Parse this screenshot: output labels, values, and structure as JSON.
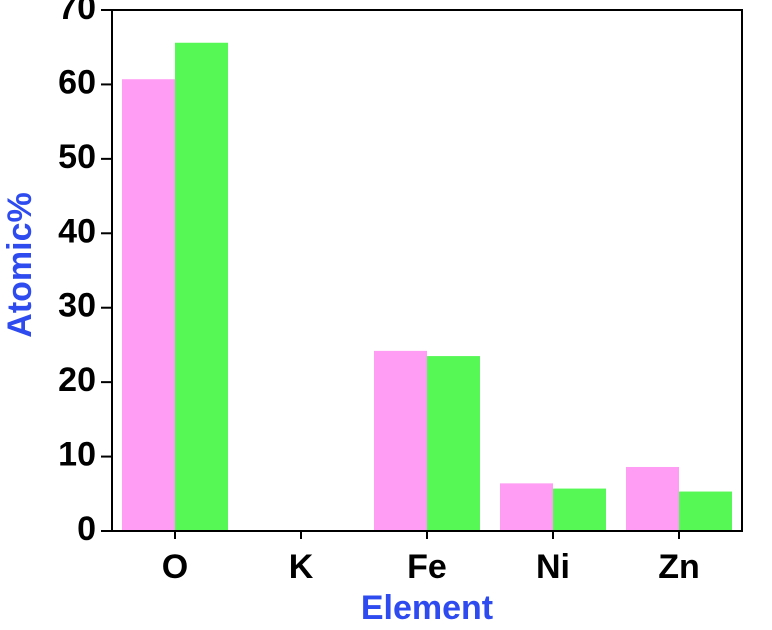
{
  "chart_data": {
    "type": "bar",
    "x_label": "Element",
    "y_label": "Atomic%",
    "categories": [
      "O",
      "K",
      "Fe",
      "Ni",
      "Zn"
    ],
    "series": [
      {
        "color": "#ff9cf4",
        "values": [
          60.7,
          0.1,
          24.2,
          6.4,
          8.6
        ]
      },
      {
        "color": "#55f855",
        "values": [
          65.6,
          0,
          23.5,
          5.7,
          5.3
        ]
      }
    ],
    "ylim": [
      0,
      70
    ],
    "yticks": [
      0,
      10,
      20,
      30,
      40,
      50,
      60,
      70
    ],
    "grid": false
  }
}
